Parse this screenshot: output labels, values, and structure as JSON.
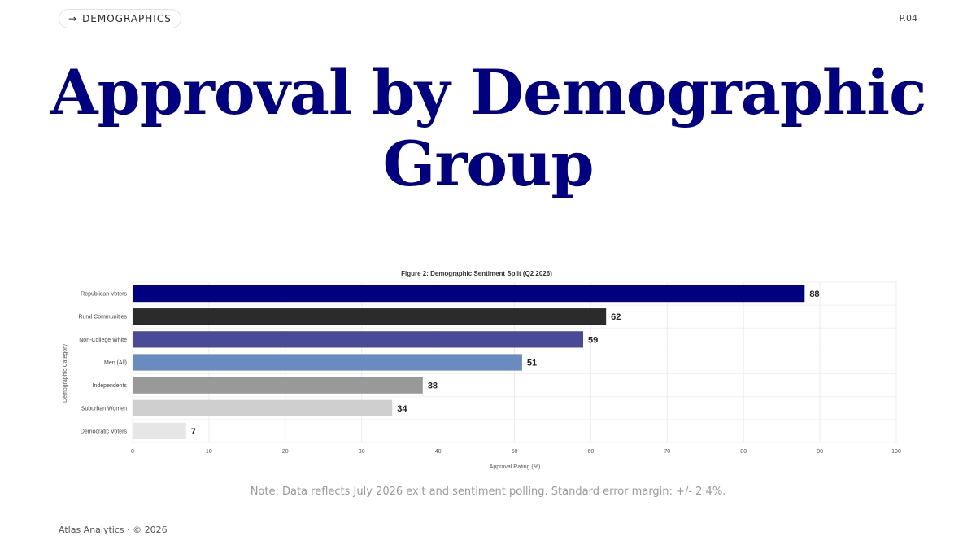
{
  "header": {
    "tag_arrow": "→",
    "tag_label": "DEMOGRAPHICS",
    "page_number": "P.04"
  },
  "title": "Approval by Demographic Group",
  "chart_data": {
    "type": "bar",
    "orientation": "horizontal",
    "title": "Figure 2: Demographic Sentiment Split (Q2 2026)",
    "xlabel": "Approval Rating (%)",
    "ylabel": "Demographic Category",
    "categories": [
      "Republican Voters",
      "Rural Communities",
      "Non-College White",
      "Men (All)",
      "Independents",
      "Suburban Women",
      "Democratic Voters"
    ],
    "values": [
      88,
      62,
      59,
      51,
      38,
      34,
      7
    ],
    "colors": [
      "#000080",
      "#2b2b2b",
      "#4b4a99",
      "#6a8bbf",
      "#999999",
      "#cfcfcf",
      "#e6e6e6"
    ],
    "xlim": [
      0,
      100
    ],
    "xticks": [
      0,
      10,
      20,
      30,
      40,
      50,
      60,
      70,
      80,
      90,
      100
    ],
    "grid": true,
    "data_labels": true
  },
  "note": "Note: Data reflects July 2026 exit and sentiment polling. Standard error margin: +/- 2.4%.",
  "footer": "Atlas Analytics · © 2026"
}
